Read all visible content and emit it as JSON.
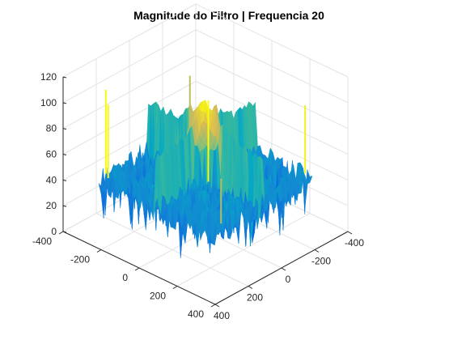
{
  "chart_data": {
    "type": "surface",
    "title": "Magnitude do Filtro | Frequencia 20",
    "xlabel": "",
    "ylabel": "",
    "zlabel": "",
    "x_ticks": [
      "-400",
      "-200",
      "0",
      "200",
      "400"
    ],
    "y_ticks": [
      "-400",
      "-200",
      "0",
      "200",
      "400"
    ],
    "z_ticks": [
      "0",
      "20",
      "40",
      "60",
      "80",
      "100",
      "120"
    ],
    "xlim": [
      -400,
      400
    ],
    "ylim": [
      -400,
      400
    ],
    "zlim": [
      0,
      120
    ],
    "grid": true,
    "box": "open (back walls shown)",
    "colormap": "parula",
    "surface": {
      "extent_x": [
        -300,
        300
      ],
      "extent_y": [
        -300,
        300
      ],
      "noise_floor_mean": 40,
      "noise_floor_range": [
        5,
        62
      ],
      "peak_value": 100,
      "cross_ridges": [
        {
          "axis": "x",
          "value": 0,
          "level": 80
        },
        {
          "axis": "y",
          "value": 0,
          "level": 80
        }
      ],
      "spikes": [
        {
          "x": -280,
          "y": 280,
          "z": 110
        },
        {
          "x": -250,
          "y": 300,
          "z": 102
        },
        {
          "x": 280,
          "y": -280,
          "z": 98
        },
        {
          "x": 300,
          "y": 250,
          "z": 80
        },
        {
          "x": -300,
          "y": -250,
          "z": 82
        },
        {
          "x": 50,
          "y": 40,
          "z": 108
        }
      ]
    }
  }
}
